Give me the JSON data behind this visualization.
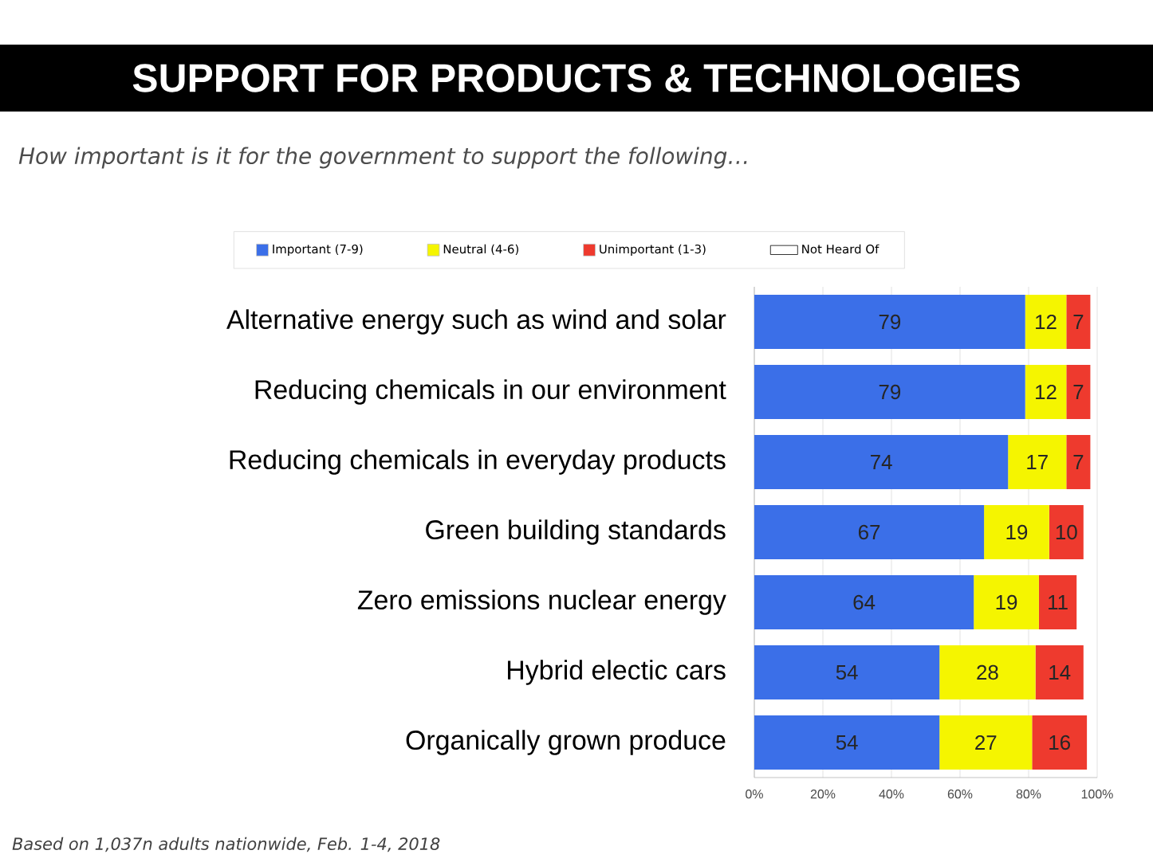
{
  "chart_data": {
    "type": "bar",
    "orientation": "horizontal",
    "stacked": true,
    "title": "SUPPORT FOR PRODUCTS & TECHNOLOGIES",
    "subtitle": "How important is it for the government to support the following…",
    "annotations": [
      "Based on 1,037n adults nationwide, Feb. 1-4, 2018"
    ],
    "categories": [
      "Alternative energy such as wind and solar",
      "Reducing chemicals in our environment",
      "Reducing chemicals in everyday products",
      "Green building standards",
      "Zero emissions nuclear energy",
      "Hybrid electic cars",
      "Organically grown produce"
    ],
    "series": [
      {
        "name": "Important (7-9)",
        "color": "#3b6fe8",
        "values": [
          79,
          79,
          74,
          67,
          64,
          54,
          54
        ]
      },
      {
        "name": "Neutral (4-6)",
        "color": "#f5f500",
        "values": [
          12,
          12,
          17,
          19,
          19,
          28,
          27
        ]
      },
      {
        "name": "Unimportant (1-3)",
        "color": "#ee3a2e",
        "values": [
          7,
          7,
          7,
          10,
          11,
          14,
          16
        ]
      },
      {
        "name": "Not Heard Of",
        "color": "#ffffff",
        "values": [
          null,
          null,
          null,
          null,
          null,
          null,
          null
        ]
      }
    ],
    "xlim": [
      0,
      100
    ],
    "xticks": [
      {
        "value": 0,
        "label": "0%"
      },
      {
        "value": 20,
        "label": "20%"
      },
      {
        "value": 40,
        "label": "40%"
      },
      {
        "value": 60,
        "label": "60%"
      },
      {
        "value": 80,
        "label": "80%"
      },
      {
        "value": 100,
        "label": "100%"
      }
    ],
    "grid": "x",
    "legend": "top",
    "data_labels": true
  }
}
